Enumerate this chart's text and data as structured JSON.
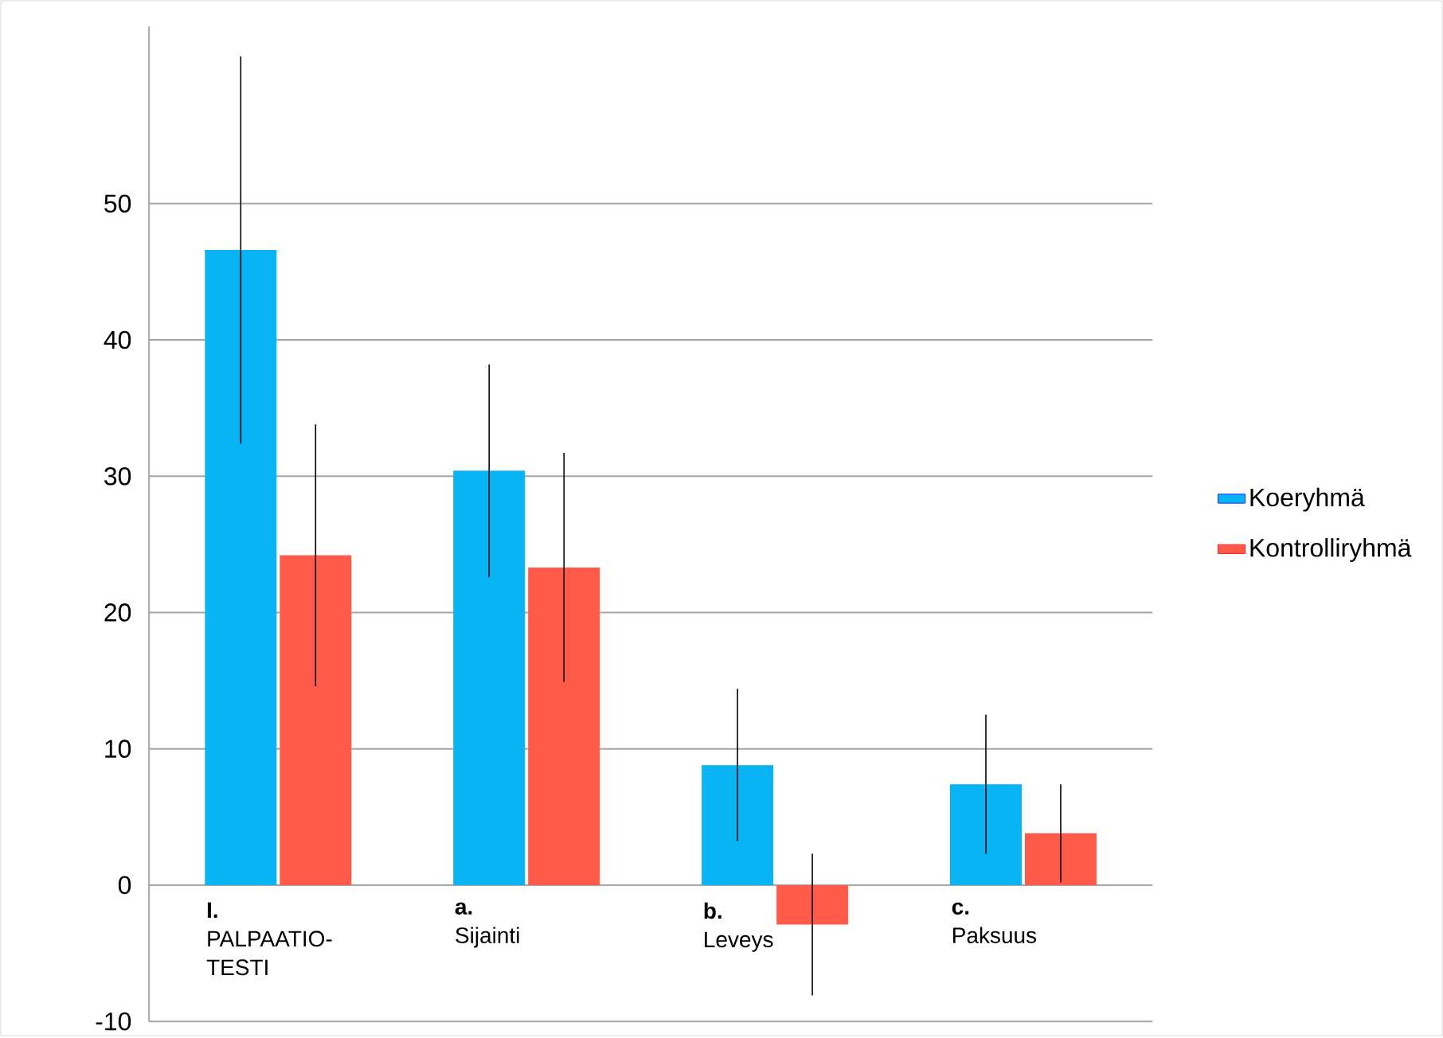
{
  "chart_data": {
    "type": "bar",
    "categories": [
      "**I.** PALPAATIO-TESTI",
      "**a.** Sijainti",
      "**b.** Leveys",
      "**c.** Paksuus"
    ],
    "series": [
      {
        "name": "Koeryhmä",
        "color": "#09b4f5",
        "values": [
          46.6,
          30.4,
          8.8,
          7.4
        ],
        "errors": [
          14.2,
          7.8,
          5.6,
          5.1
        ]
      },
      {
        "name": "Kontrolliryhmä",
        "color": "#ff5a4a",
        "values": [
          24.2,
          23.3,
          -2.9,
          3.8
        ],
        "errors": [
          9.6,
          8.4,
          5.2,
          3.6
        ]
      }
    ],
    "ylim": [
      -10,
      63
    ],
    "yticks": [
      -10,
      0,
      10,
      20,
      30,
      40,
      50
    ],
    "grid": "y",
    "legend": "right"
  }
}
